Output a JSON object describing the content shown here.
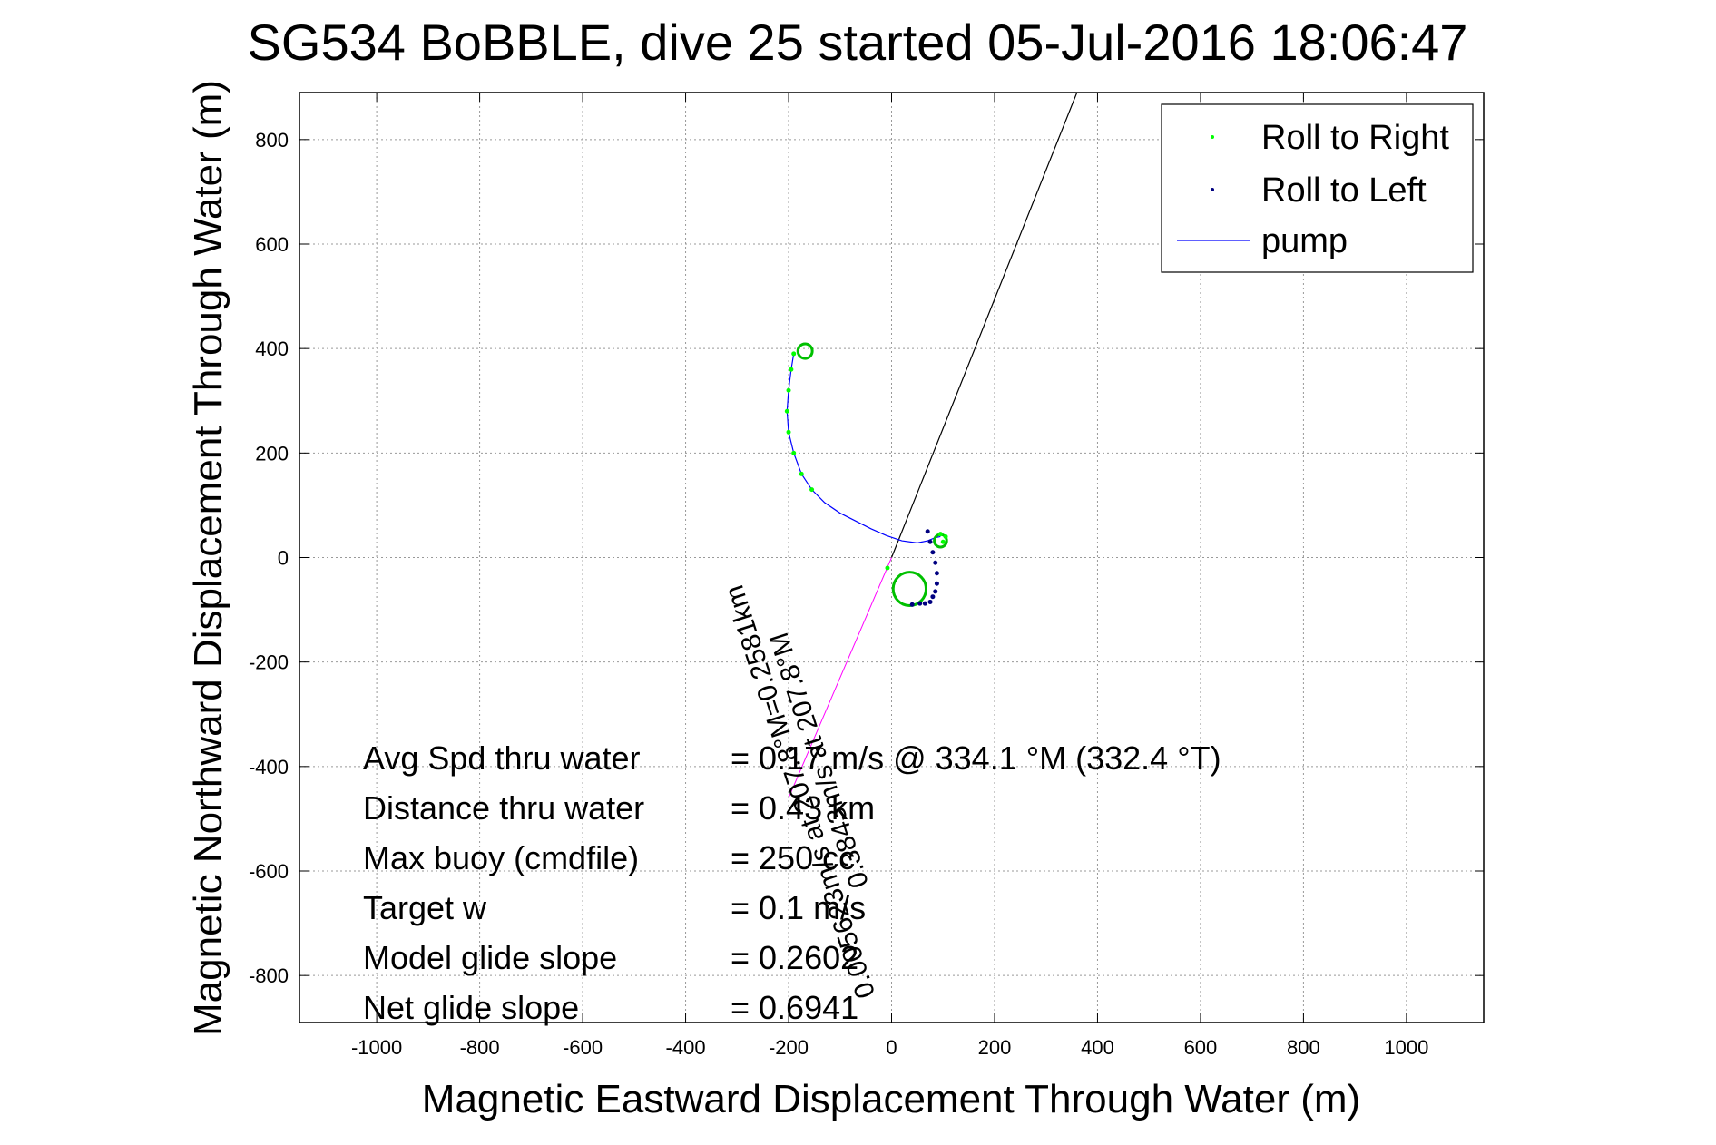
{
  "chart_data": {
    "type": "line",
    "title": "SG534 BoBBLE, dive 25 started 05-Jul-2016 18:06:47",
    "xlabel": "Magnetic Eastward Displacement Through Water (m)",
    "ylabel": "Magnetic Northward Displacement Through Water (m)",
    "xlim": [
      -1150,
      1150
    ],
    "ylim": [
      -890,
      890
    ],
    "grid": true,
    "xticks": [
      -1000,
      -800,
      -600,
      -400,
      -200,
      0,
      200,
      400,
      600,
      800,
      1000
    ],
    "yticks": [
      -800,
      -600,
      -400,
      -200,
      0,
      200,
      400,
      600,
      800
    ],
    "xtick_labels": [
      "-1000",
      "-800",
      "-600",
      "-400",
      "-200",
      "0",
      "200",
      "400",
      "600",
      "800",
      "1000"
    ],
    "ytick_labels": [
      "-800",
      "-600",
      "-400",
      "-200",
      "0",
      "200",
      "400",
      "600",
      "800"
    ],
    "legend_position": "top-right",
    "legend": [
      "Roll to Right",
      "Roll to Left",
      "pump"
    ],
    "colors": {
      "roll_right": "#00ff00",
      "roll_left": "#000080",
      "pump": "#0000ff",
      "heading_line": "#000000",
      "current_line": "#ff00ff",
      "circle_green": "#00c000"
    },
    "series": [
      {
        "name": "pump",
        "x": [
          -190,
          -195,
          -200,
          -203,
          -200,
          -190,
          -175,
          -155,
          -130,
          -100,
          -70,
          -40,
          -10,
          20,
          50,
          70,
          85,
          95
        ],
        "y": [
          390,
          360,
          320,
          280,
          240,
          200,
          160,
          130,
          105,
          85,
          70,
          55,
          42,
          32,
          28,
          32,
          38,
          40
        ]
      },
      {
        "name": "Roll to Right",
        "x": [
          -190,
          -195,
          -200,
          -203,
          -200,
          -190,
          -175,
          -155,
          -8,
          100,
          95,
          105
        ],
        "y": [
          390,
          360,
          320,
          280,
          240,
          200,
          160,
          130,
          -20,
          30,
          45,
          40
        ]
      },
      {
        "name": "Roll to Left",
        "x": [
          70,
          75,
          80,
          85,
          88,
          88,
          85,
          80,
          75,
          65,
          55,
          40
        ],
        "y": [
          50,
          30,
          10,
          -10,
          -30,
          -50,
          -65,
          -75,
          -85,
          -88,
          -88,
          -90
        ]
      }
    ],
    "heading_line": {
      "x": [
        0,
        360
      ],
      "y": [
        0,
        890
      ]
    },
    "current_line": {
      "x": [
        0,
        -200
      ],
      "y": [
        0,
        -460
      ]
    },
    "loops": [
      {
        "label": "upper-left loop",
        "cx": -168,
        "cy": 395,
        "r": 14
      },
      {
        "label": "lower loop",
        "cx": 35,
        "cy": -60,
        "r": 32
      },
      {
        "label": "small loop",
        "cx": 95,
        "cy": 32,
        "r": 12
      }
    ],
    "current_annotation": "0.3843m/s at 207.8°M, 0.005623m/s at 207.8°M=0.2581km",
    "current_annotation_line1": "0.3843m/s at 207.8°M",
    "current_annotation_line2": "0.005623m/s at 207.8°M=0.2581km"
  },
  "stats": [
    {
      "label": "Avg Spd thru water",
      "value": "=  0.17 m/s @ 334.1 °M (332.4 °T)"
    },
    {
      "label": "Distance thru water",
      "value": "=  0.43 km"
    },
    {
      "label": "Max buoy (cmdfile)",
      "value": "= 250 cc"
    },
    {
      "label": "Target w",
      "value": "= 0.1 m/s"
    },
    {
      "label": "Model glide slope",
      "value": "= 0.2602"
    },
    {
      "label": "Net glide slope",
      "value": "= 0.6941"
    }
  ]
}
